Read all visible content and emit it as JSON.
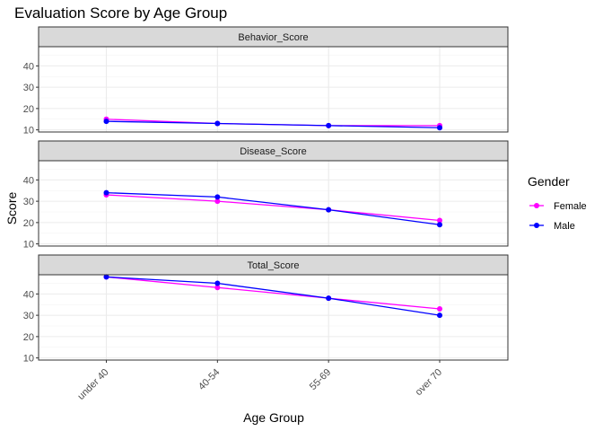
{
  "chart_data": {
    "type": "line",
    "title": "Evaluation Score by Age Group",
    "xlabel": "Age Group",
    "ylabel": "Score",
    "categories": [
      "under 40",
      "40-54",
      "55-69",
      "over 70"
    ],
    "ylim": [
      9,
      49
    ],
    "yticks": [
      10,
      20,
      30,
      40
    ],
    "grid": true,
    "legend": {
      "title": "Gender",
      "position": "right",
      "entries": [
        {
          "name": "Female",
          "color": "#FF00FF"
        },
        {
          "name": "Male",
          "color": "#0000FF"
        }
      ]
    },
    "facets": [
      {
        "label": "Behavior_Score",
        "series": [
          {
            "name": "Female",
            "values": [
              15,
              13,
              12,
              12
            ]
          },
          {
            "name": "Male",
            "values": [
              14,
              13,
              12,
              11
            ]
          }
        ]
      },
      {
        "label": "Disease_Score",
        "series": [
          {
            "name": "Female",
            "values": [
              33,
              30,
              26,
              21
            ]
          },
          {
            "name": "Male",
            "values": [
              34,
              32,
              26,
              19
            ]
          }
        ]
      },
      {
        "label": "Total_Score",
        "series": [
          {
            "name": "Female",
            "values": [
              48,
              43,
              38,
              33
            ]
          },
          {
            "name": "Male",
            "values": [
              48,
              45,
              38,
              30
            ]
          }
        ]
      }
    ]
  }
}
